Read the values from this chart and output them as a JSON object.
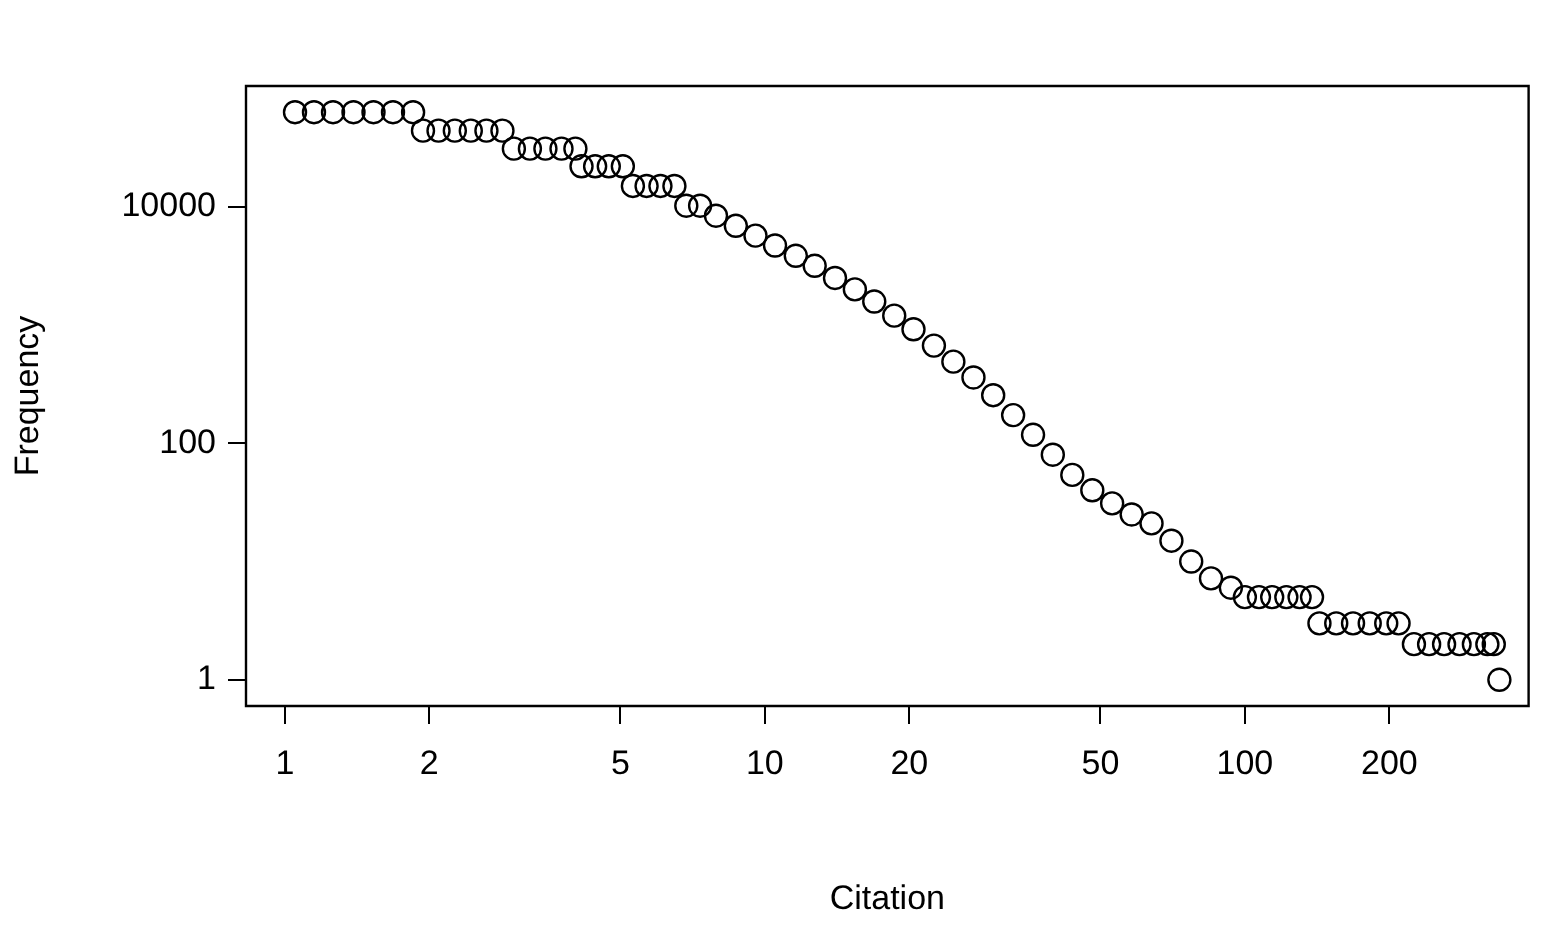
{
  "chart_data": {
    "type": "scatter",
    "xlabel": "Citation",
    "ylabel": "Frequency",
    "log": "xy",
    "xlim": [
      0.83,
      390
    ],
    "ylim": [
      0.63,
      105000
    ],
    "xticks": [
      1,
      2,
      5,
      10,
      20,
      50,
      100,
      200
    ],
    "yticks": [
      1,
      100,
      10000
    ],
    "marker": "circle",
    "legend": false,
    "grid": false,
    "series": [
      {
        "color": "#000000",
        "x": [
          1.05,
          1.15,
          1.26,
          1.39,
          1.53,
          1.68,
          1.85,
          1.94,
          2.09,
          2.26,
          2.44,
          2.63,
          2.84,
          3.0,
          3.24,
          3.49,
          3.77,
          4.03,
          4.15,
          4.43,
          4.73,
          5.06,
          5.31,
          5.67,
          6.06,
          6.48,
          6.86,
          7.33,
          7.91,
          8.7,
          9.56,
          10.5,
          11.6,
          12.7,
          14.0,
          15.4,
          16.9,
          18.6,
          20.4,
          22.5,
          24.7,
          27.2,
          29.9,
          32.9,
          36.2,
          39.8,
          43.7,
          48.1,
          52.9,
          58.1,
          63.9,
          70.3,
          77.3,
          85.0,
          93.5,
          100,
          107,
          114,
          122,
          130,
          138,
          143,
          155,
          168,
          182,
          197,
          209,
          225,
          242,
          260,
          280,
          300,
          320,
          330,
          339
        ],
        "values": [
          63000,
          63000,
          63000,
          63000,
          63000,
          63000,
          63000,
          44000,
          44000,
          44000,
          44000,
          44000,
          44000,
          31000,
          31000,
          31000,
          31000,
          31000,
          22000,
          22000,
          22000,
          22000,
          15000,
          15000,
          15000,
          15000,
          10200,
          10200,
          8400,
          6900,
          5700,
          4700,
          3850,
          3170,
          2500,
          2000,
          1580,
          1200,
          920,
          670,
          490,
          360,
          255,
          173,
          118,
          80,
          54,
          40,
          31,
          25,
          21,
          15,
          10,
          7.2,
          6,
          5,
          5,
          5,
          5,
          5,
          5,
          3,
          3,
          3,
          3,
          3,
          3,
          2,
          2,
          2,
          2,
          2,
          2,
          2,
          1
        ]
      }
    ]
  }
}
